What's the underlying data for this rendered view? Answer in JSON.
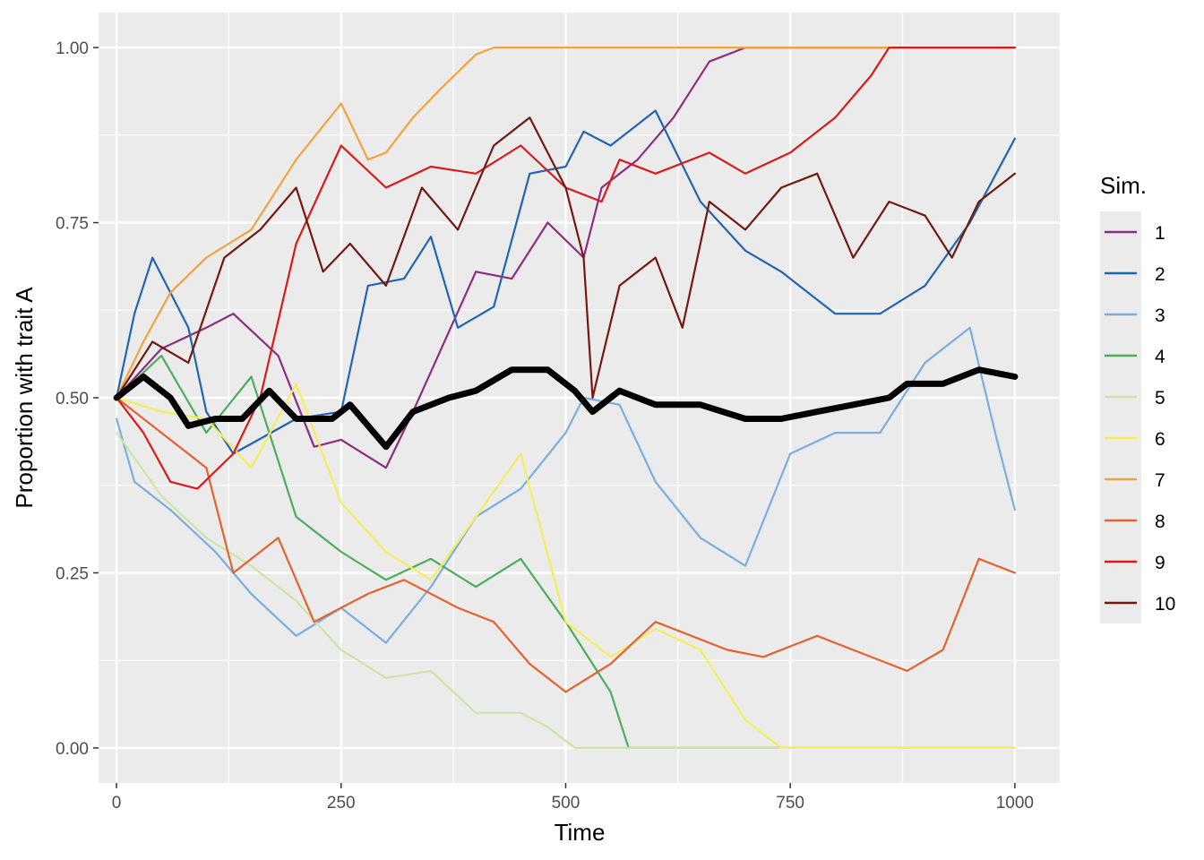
{
  "chart_data": {
    "type": "line",
    "xlabel": "Time",
    "ylabel": "Proportion with trait A",
    "xlim": [
      -20,
      1050
    ],
    "ylim": [
      -0.05,
      1.05
    ],
    "x_ticks": [
      0,
      250,
      500,
      750,
      1000
    ],
    "x_tick_labels": [
      "0",
      "250",
      "500",
      "750",
      "1000"
    ],
    "y_ticks": [
      0,
      0.25,
      0.5,
      0.75,
      1
    ],
    "y_tick_labels": [
      "0.00",
      "0.25",
      "0.50",
      "0.75",
      "1.00"
    ],
    "grid": true,
    "legend": {
      "title": "Sim.",
      "position": "right"
    },
    "series": [
      {
        "name": "1",
        "color": "#8E2C7E",
        "x": [
          0,
          50,
          100,
          130,
          180,
          220,
          250,
          300,
          330,
          400,
          440,
          480,
          520,
          540,
          580,
          620,
          660,
          700,
          1000
        ],
        "y": [
          0.5,
          0.57,
          0.6,
          0.62,
          0.56,
          0.43,
          0.44,
          0.4,
          0.48,
          0.68,
          0.67,
          0.75,
          0.7,
          0.8,
          0.84,
          0.9,
          0.98,
          1.0,
          1.0
        ]
      },
      {
        "name": "2",
        "color": "#1F65B0",
        "x": [
          0,
          20,
          40,
          80,
          100,
          130,
          200,
          250,
          280,
          320,
          350,
          380,
          420,
          460,
          500,
          520,
          550,
          600,
          650,
          700,
          740,
          800,
          850,
          900,
          950,
          1000
        ],
        "y": [
          0.5,
          0.62,
          0.7,
          0.6,
          0.48,
          0.42,
          0.47,
          0.48,
          0.66,
          0.67,
          0.73,
          0.6,
          0.63,
          0.82,
          0.83,
          0.88,
          0.86,
          0.91,
          0.78,
          0.71,
          0.68,
          0.62,
          0.62,
          0.66,
          0.75,
          0.87
        ]
      },
      {
        "name": "3",
        "color": "#78AEE0",
        "x": [
          0,
          20,
          60,
          110,
          150,
          200,
          250,
          300,
          350,
          400,
          450,
          500,
          520,
          560,
          600,
          650,
          700,
          750,
          800,
          850,
          900,
          950,
          980,
          1000
        ],
        "y": [
          0.47,
          0.38,
          0.34,
          0.28,
          0.22,
          0.16,
          0.2,
          0.15,
          0.23,
          0.33,
          0.37,
          0.45,
          0.5,
          0.49,
          0.38,
          0.3,
          0.26,
          0.42,
          0.45,
          0.45,
          0.55,
          0.6,
          0.44,
          0.34
        ]
      },
      {
        "name": "4",
        "color": "#4AAE5A",
        "x": [
          0,
          50,
          100,
          150,
          200,
          250,
          300,
          350,
          400,
          450,
          500,
          530,
          550,
          570,
          1000
        ],
        "y": [
          0.5,
          0.56,
          0.45,
          0.53,
          0.33,
          0.28,
          0.24,
          0.27,
          0.23,
          0.27,
          0.18,
          0.12,
          0.08,
          0.0,
          0.0
        ]
      },
      {
        "name": "5",
        "color": "#CDE5A4",
        "x": [
          0,
          50,
          100,
          150,
          200,
          250,
          300,
          350,
          400,
          450,
          480,
          500,
          510,
          1000
        ],
        "y": [
          0.45,
          0.36,
          0.3,
          0.26,
          0.21,
          0.14,
          0.1,
          0.11,
          0.05,
          0.05,
          0.03,
          0.01,
          0.0,
          0.0
        ]
      },
      {
        "name": "6",
        "color": "#F4EE5B",
        "x": [
          0,
          50,
          100,
          150,
          200,
          250,
          300,
          350,
          400,
          450,
          500,
          550,
          600,
          650,
          700,
          730,
          740,
          1000
        ],
        "y": [
          0.5,
          0.48,
          0.47,
          0.4,
          0.52,
          0.35,
          0.28,
          0.24,
          0.33,
          0.42,
          0.18,
          0.13,
          0.17,
          0.14,
          0.04,
          0.01,
          0.0,
          0.0
        ]
      },
      {
        "name": "7",
        "color": "#F1A43A",
        "x": [
          0,
          30,
          60,
          100,
          150,
          200,
          250,
          280,
          300,
          330,
          360,
          400,
          420,
          1000
        ],
        "y": [
          0.5,
          0.58,
          0.65,
          0.7,
          0.74,
          0.84,
          0.92,
          0.84,
          0.85,
          0.9,
          0.94,
          0.99,
          1.0,
          1.0
        ]
      },
      {
        "name": "8",
        "color": "#E4632D",
        "x": [
          0,
          50,
          100,
          130,
          180,
          220,
          280,
          320,
          380,
          420,
          460,
          500,
          550,
          600,
          640,
          680,
          720,
          780,
          820,
          880,
          920,
          960,
          1000
        ],
        "y": [
          0.5,
          0.45,
          0.4,
          0.25,
          0.3,
          0.18,
          0.22,
          0.24,
          0.2,
          0.18,
          0.12,
          0.08,
          0.12,
          0.18,
          0.16,
          0.14,
          0.13,
          0.16,
          0.14,
          0.11,
          0.14,
          0.27,
          0.25
        ]
      },
      {
        "name": "9",
        "color": "#DA1A1A",
        "x": [
          0,
          30,
          60,
          90,
          130,
          160,
          200,
          250,
          300,
          350,
          400,
          450,
          500,
          540,
          560,
          600,
          660,
          700,
          750,
          800,
          840,
          860,
          1000
        ],
        "y": [
          0.5,
          0.45,
          0.38,
          0.37,
          0.42,
          0.5,
          0.72,
          0.86,
          0.8,
          0.83,
          0.82,
          0.86,
          0.8,
          0.78,
          0.84,
          0.82,
          0.85,
          0.82,
          0.85,
          0.9,
          0.96,
          1.0,
          1.0
        ]
      },
      {
        "name": "10",
        "color": "#72190E",
        "x": [
          0,
          40,
          80,
          120,
          160,
          200,
          230,
          260,
          300,
          340,
          380,
          420,
          460,
          500,
          520,
          530,
          560,
          600,
          630,
          660,
          700,
          740,
          780,
          820,
          860,
          900,
          930,
          960,
          1000
        ],
        "y": [
          0.5,
          0.58,
          0.55,
          0.7,
          0.74,
          0.8,
          0.68,
          0.72,
          0.66,
          0.8,
          0.74,
          0.86,
          0.9,
          0.8,
          0.7,
          0.5,
          0.66,
          0.7,
          0.6,
          0.78,
          0.74,
          0.8,
          0.82,
          0.7,
          0.78,
          0.76,
          0.7,
          0.78,
          0.82
        ]
      },
      {
        "name": "",
        "color": "#000000",
        "thick": true,
        "x": [
          0,
          30,
          60,
          80,
          110,
          140,
          170,
          200,
          240,
          260,
          300,
          330,
          370,
          400,
          440,
          480,
          510,
          530,
          560,
          600,
          650,
          700,
          740,
          780,
          820,
          860,
          880,
          920,
          960,
          1000
        ],
        "y": [
          0.5,
          0.53,
          0.5,
          0.46,
          0.47,
          0.47,
          0.51,
          0.47,
          0.47,
          0.49,
          0.43,
          0.48,
          0.5,
          0.51,
          0.54,
          0.54,
          0.51,
          0.48,
          0.51,
          0.49,
          0.49,
          0.47,
          0.47,
          0.48,
          0.49,
          0.5,
          0.52,
          0.52,
          0.54,
          0.53
        ]
      }
    ]
  }
}
